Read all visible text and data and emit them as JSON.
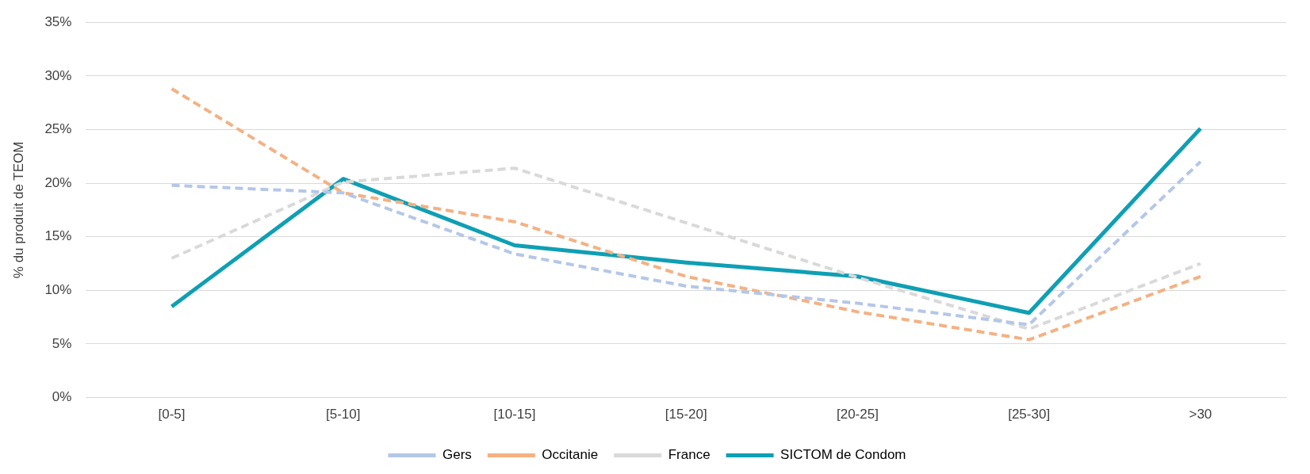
{
  "chart_data": {
    "type": "line",
    "ylabel": "% du produit de TEOM",
    "categories": [
      "[0-5]",
      "[5-10]",
      "[10-15]",
      "[15-20]",
      "[20-25]",
      "[25-30]",
      ">30"
    ],
    "series": [
      {
        "name": "Gers",
        "color": "#b4c7e7",
        "line_style": "dashed",
        "values": [
          19.8,
          19.1,
          13.4,
          10.4,
          8.8,
          6.8,
          22.0
        ]
      },
      {
        "name": "Occitanie",
        "color": "#f4b183",
        "line_style": "dashed",
        "values": [
          28.8,
          19.1,
          16.4,
          11.3,
          8.0,
          5.4,
          11.3
        ]
      },
      {
        "name": "France",
        "color": "#d9d9d9",
        "line_style": "dashed",
        "values": [
          13.0,
          20.1,
          21.4,
          16.3,
          11.2,
          6.4,
          12.5
        ]
      },
      {
        "name": "SICTOM de Condom",
        "color": "#0f9fb4",
        "line_style": "solid",
        "values": [
          8.5,
          20.4,
          14.2,
          12.6,
          11.3,
          7.9,
          25.1
        ]
      }
    ],
    "ylim": [
      0,
      35
    ],
    "yticks": [
      {
        "value": 0,
        "label": "0%"
      },
      {
        "value": 5,
        "label": "5%"
      },
      {
        "value": 10,
        "label": "10%"
      },
      {
        "value": 15,
        "label": "15%"
      },
      {
        "value": 20,
        "label": "20%"
      },
      {
        "value": 25,
        "label": "25%"
      },
      {
        "value": 30,
        "label": "30%"
      },
      {
        "value": 35,
        "label": "35%"
      }
    ],
    "grid": "y",
    "legend": "bottom",
    "marker": "none"
  }
}
